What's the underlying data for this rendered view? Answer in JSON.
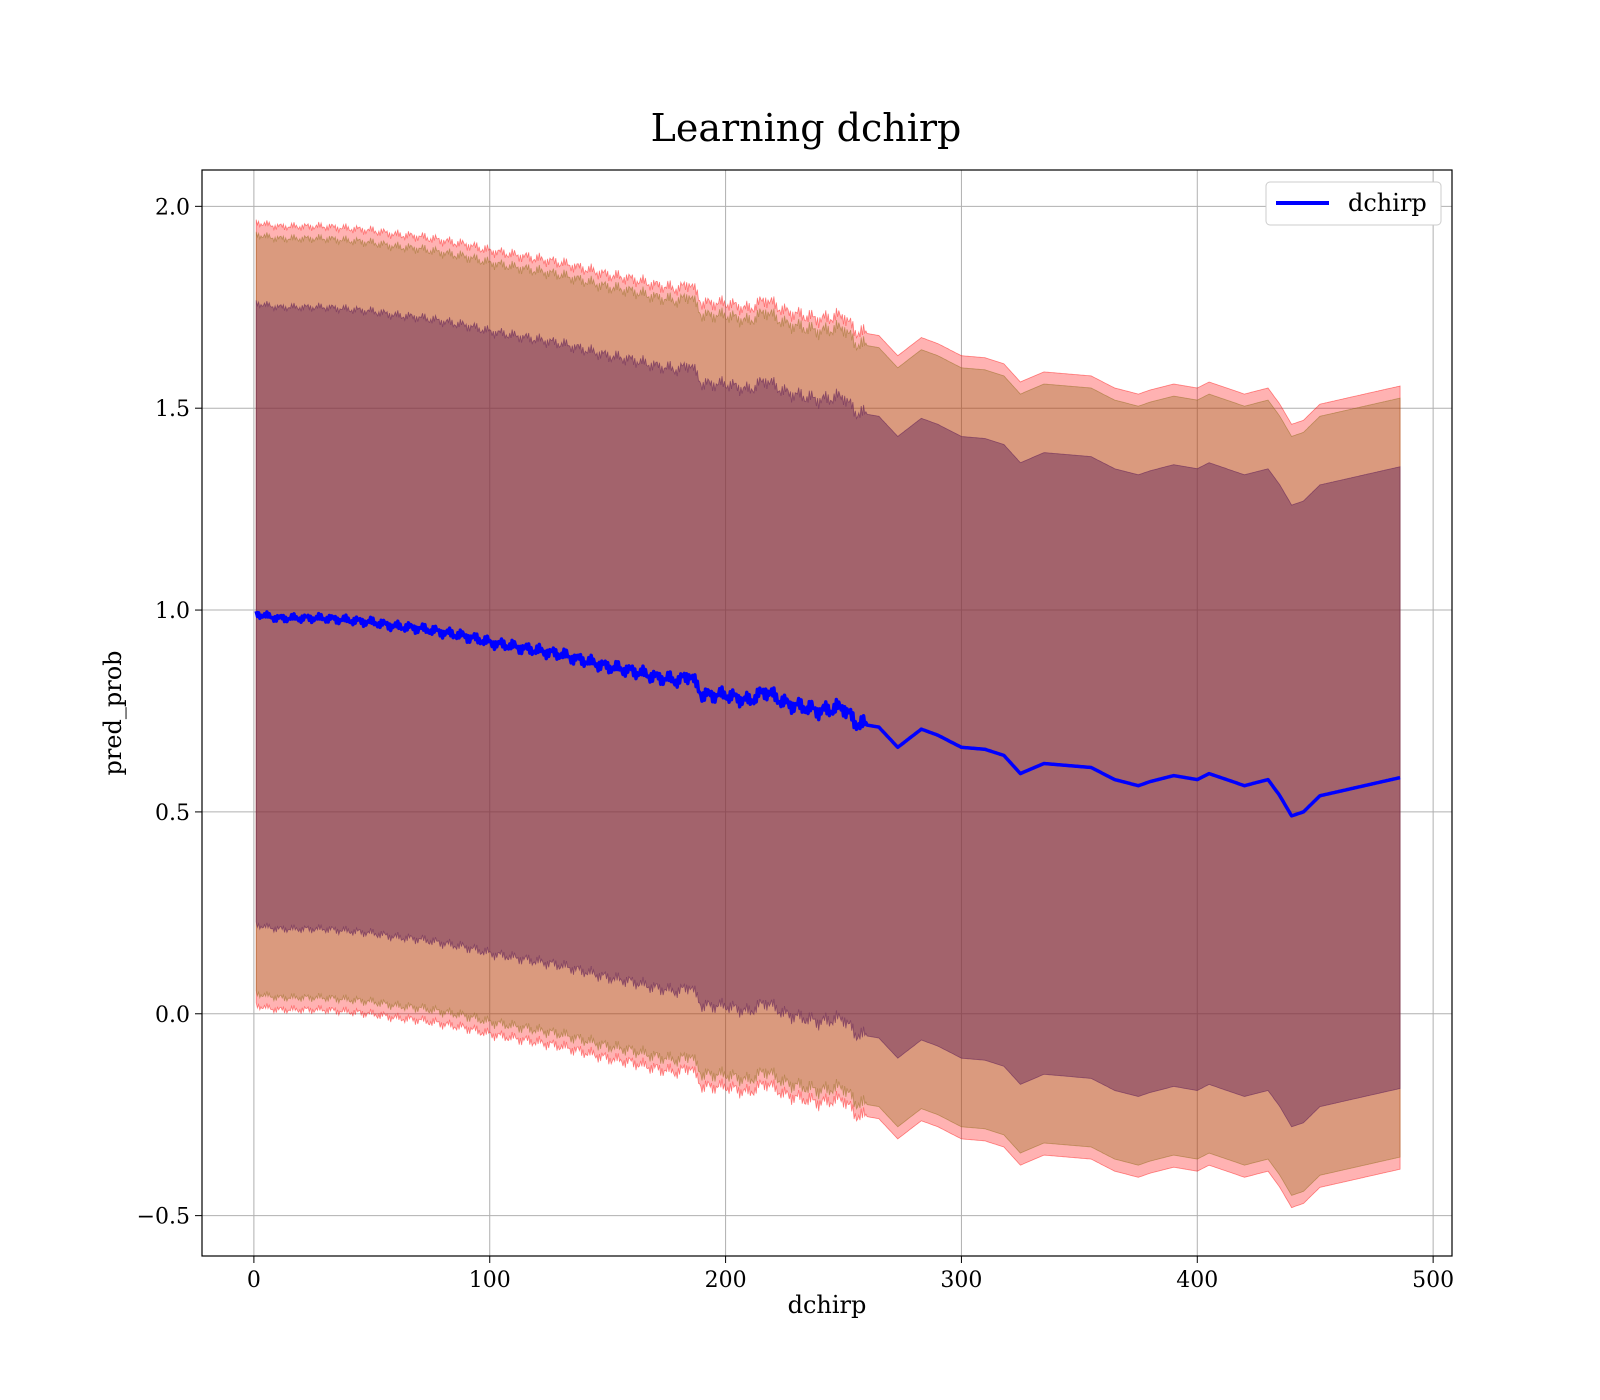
{
  "chart_data": {
    "type": "line",
    "title": "Learning dchirp",
    "xlabel": "dchirp",
    "ylabel": "pred_prob",
    "xlim": [
      -22,
      508
    ],
    "ylim": [
      -0.6,
      2.09
    ],
    "xticks": [
      0,
      100,
      200,
      300,
      400,
      500
    ],
    "yticks": [
      -0.5,
      0.0,
      0.5,
      1.0,
      1.5,
      2.0
    ],
    "xtick_labels": [
      "0",
      "100",
      "200",
      "300",
      "400",
      "500"
    ],
    "ytick_labels": [
      "−0.5",
      "0.0",
      "0.5",
      "1.0",
      "1.5",
      "2.0"
    ],
    "grid": true,
    "legend_position": "top-right",
    "series": [
      {
        "name": "dchirp",
        "color": "#0000ff",
        "x": [
          1,
          10,
          20,
          30,
          40,
          50,
          60,
          70,
          80,
          90,
          100,
          110,
          120,
          130,
          140,
          150,
          160,
          170,
          180,
          185,
          190,
          200,
          210,
          217,
          225,
          240,
          250,
          255,
          265,
          273,
          283,
          290,
          300,
          310,
          318,
          325,
          335,
          345,
          355,
          365,
          375,
          380,
          390,
          400,
          405,
          415,
          420,
          430,
          435,
          440,
          445,
          452,
          486
        ],
        "y": [
          0.99,
          0.98,
          0.98,
          0.98,
          0.975,
          0.97,
          0.96,
          0.955,
          0.945,
          0.935,
          0.92,
          0.91,
          0.9,
          0.89,
          0.875,
          0.86,
          0.85,
          0.835,
          0.825,
          0.84,
          0.79,
          0.79,
          0.775,
          0.8,
          0.77,
          0.75,
          0.76,
          0.72,
          0.71,
          0.66,
          0.705,
          0.69,
          0.66,
          0.655,
          0.64,
          0.595,
          0.62,
          0.615,
          0.61,
          0.58,
          0.565,
          0.575,
          0.59,
          0.58,
          0.595,
          0.575,
          0.565,
          0.58,
          0.54,
          0.49,
          0.5,
          0.54,
          0.585
        ]
      }
    ],
    "bands": [
      {
        "color": "#ff0000",
        "opacity": 0.3,
        "lower_offset": -0.97,
        "upper_offset": 0.97
      },
      {
        "color": "#8b6914",
        "opacity": 0.32,
        "lower_offset": -0.94,
        "upper_offset": 0.94
      },
      {
        "color": "#6b2b5a",
        "opacity": 0.5,
        "lower_offset": -0.77,
        "upper_offset": 0.77
      }
    ]
  }
}
